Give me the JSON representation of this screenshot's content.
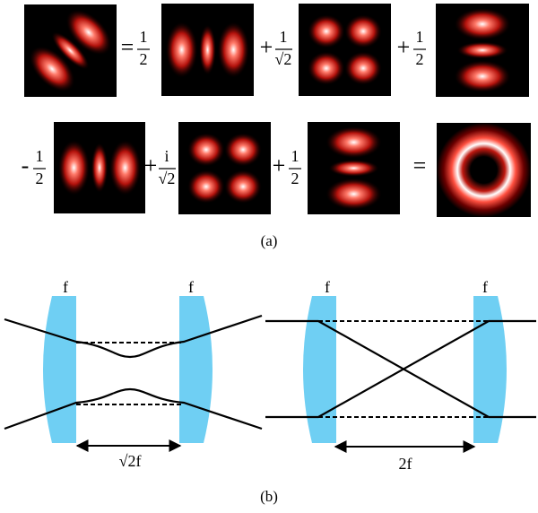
{
  "panel_a": {
    "row1": [
      {
        "sign": "=",
        "num": "1",
        "den": "2"
      },
      {
        "sign": "+",
        "num": "1",
        "den": "√2"
      },
      {
        "sign": "+",
        "num": "1",
        "den": "2"
      }
    ],
    "row2": [
      {
        "sign": "-",
        "num": "1",
        "den": "2"
      },
      {
        "sign": "+",
        "num": "i",
        "den": "√2"
      },
      {
        "sign": "+",
        "num": "1",
        "den": "2"
      }
    ],
    "row2_end": "=",
    "caption": "(a)"
  },
  "panel_b": {
    "left": {
      "focal_labels": [
        "f",
        "f"
      ],
      "distance": "√2f"
    },
    "right": {
      "focal_labels": [
        "f",
        "f"
      ],
      "distance": "2f"
    },
    "caption": "(b)"
  }
}
